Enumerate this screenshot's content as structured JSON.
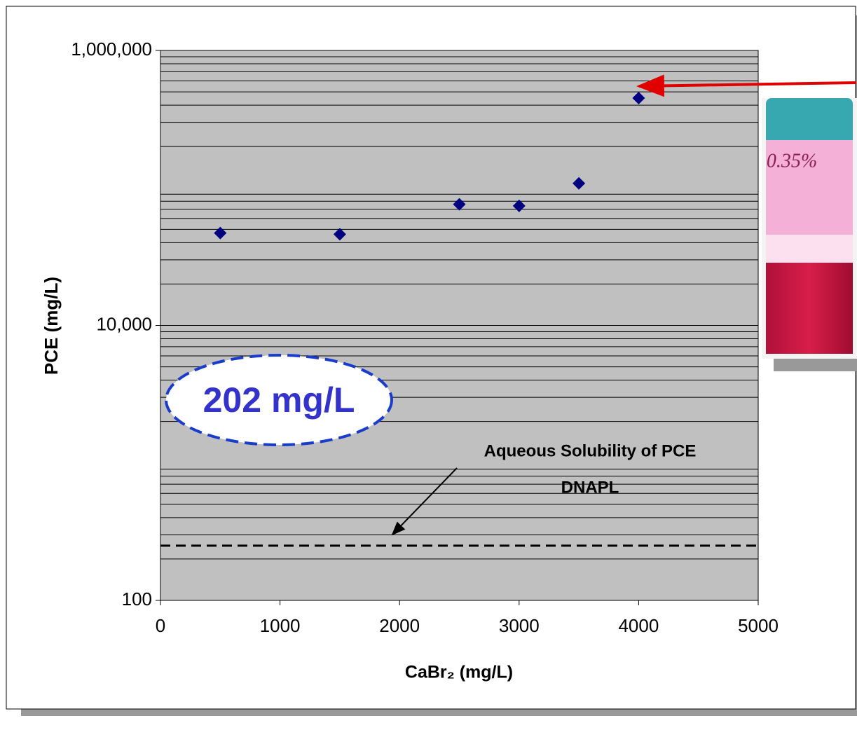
{
  "chart_data": {
    "type": "scatter",
    "x_label": "CaBr₂ (mg/L)",
    "y_label": "PCE (mg/L)",
    "x": [
      500,
      1500,
      2500,
      3000,
      3500,
      4000
    ],
    "series": [
      {
        "color": "#000080",
        "values": [
          47000,
          46000,
          76000,
          74000,
          108000,
          450000
        ]
      }
    ],
    "xlim": [
      0,
      5000
    ],
    "xticks": [
      0,
      1000,
      2000,
      3000,
      4000,
      5000
    ],
    "ylim": [
      100,
      1000000
    ],
    "yticks": [
      {
        "value": 100,
        "label": "100"
      },
      {
        "value": 10000,
        "label": "10,000"
      },
      {
        "value": 1000000,
        "label": "1,000,000"
      }
    ],
    "log_y": true,
    "grid": true,
    "minor_grid": true,
    "plot_background": "#c0c0c0",
    "reference_line": {
      "value": 250,
      "label": [
        "Aqueous Solubility of PCE",
        "DNAPL"
      ]
    },
    "callout": "202 mg/L",
    "vial_label": "0.35%"
  }
}
